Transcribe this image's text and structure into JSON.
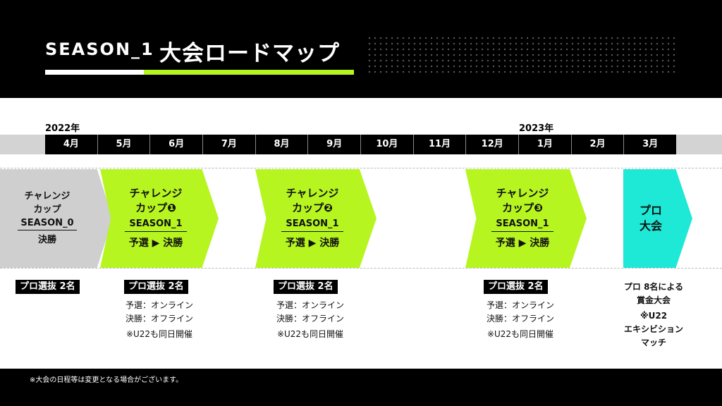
{
  "header": {
    "season": "SEASON_1",
    "title": "大会ロードマップ",
    "accent_color": "#b6f520"
  },
  "timeline": {
    "year_start": "2022年",
    "year_end": "2023年",
    "months": [
      "4月",
      "5月",
      "6月",
      "7月",
      "8月",
      "9月",
      "10月",
      "11月",
      "12月",
      "1月",
      "2月",
      "3月"
    ]
  },
  "events": {
    "season0": {
      "name_line1": "チャレンジ",
      "name_line2": "カップ",
      "season": "SEASON_0",
      "stage": "決勝",
      "badge": "プロ選抜 2名"
    },
    "cup1": {
      "name_line1": "チャレンジ",
      "name_line2": "カップ❶",
      "season": "SEASON_1",
      "stage": "予選 ▶ 決勝",
      "badge": "プロ選抜 2名",
      "detail_line1": "予選：オンライン",
      "detail_line2": "決勝：オフライン",
      "note": "※U22も同日開催"
    },
    "cup2": {
      "name_line1": "チャレンジ",
      "name_line2": "カップ❷",
      "season": "SEASON_1",
      "stage": "予選 ▶ 決勝",
      "badge": "プロ選抜 2名",
      "detail_line1": "予選：オンライン",
      "detail_line2": "決勝：オフライン",
      "note": "※U22も同日開催"
    },
    "cup3": {
      "name_line1": "チャレンジ",
      "name_line2": "カップ❸",
      "season": "SEASON_1",
      "stage": "予選 ▶ 決勝",
      "badge": "プロ選抜 2名",
      "detail_line1": "予選：オンライン",
      "detail_line2": "決勝：オフライン",
      "note": "※U22も同日開催"
    },
    "pro": {
      "name_line1": "プロ",
      "name_line2": "大会",
      "detail_line1": "プロ 8名による",
      "detail_line2": "賞金大会",
      "detail_line3": "※U22",
      "detail_line4": "エキシビション",
      "detail_line5": "マッチ"
    }
  },
  "footer": {
    "note": "※大会の日程等は変更となる場合がございます。"
  }
}
